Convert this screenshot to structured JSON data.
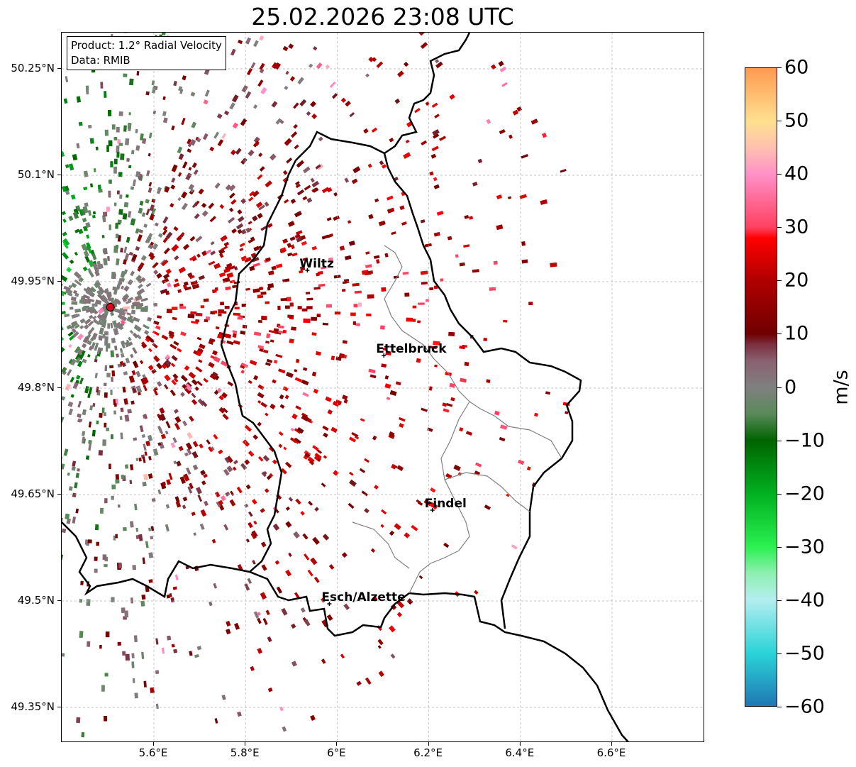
{
  "title": "25.02.2026 23:08 UTC",
  "info": {
    "product_line": "Product: 1.2° Radial Velocity",
    "data_line": "Data: RMIB"
  },
  "map": {
    "lon_range": [
      5.4,
      6.8
    ],
    "lat_range": [
      49.3,
      50.3
    ],
    "lat_ticks": [
      "50.25°N",
      "50.1°N",
      "49.95°N",
      "49.8°N",
      "49.65°N",
      "49.5°N",
      "49.35°N"
    ],
    "lat_tick_values": [
      50.25,
      50.1,
      49.95,
      49.8,
      49.65,
      49.5,
      49.35
    ],
    "lon_ticks": [
      "5.6°E",
      "5.8°E",
      "6°E",
      "6.2°E",
      "6.4°E",
      "6.6°E"
    ],
    "lon_tick_values": [
      5.6,
      5.8,
      6.0,
      6.2,
      6.4,
      6.6
    ],
    "gridlines": true,
    "radar_site": {
      "lon": 5.505,
      "lat": 49.914,
      "color": "#e0001a"
    },
    "cities": [
      {
        "name": "Wiltz",
        "lon": 5.935,
        "lat": 49.966
      },
      {
        "name": "Ettelbruck",
        "lon": 6.102,
        "lat": 49.846
      },
      {
        "name": "Findel",
        "lon": 6.208,
        "lat": 49.628
      },
      {
        "name": "Esch/Alzette",
        "lon": 5.983,
        "lat": 49.496
      }
    ]
  },
  "colorbar": {
    "min": -60,
    "max": 60,
    "ticks": [
      "60",
      "50",
      "40",
      "30",
      "20",
      "10",
      "0",
      "−10",
      "−20",
      "−30",
      "−40",
      "−50",
      "−60"
    ],
    "tick_values": [
      60,
      50,
      40,
      30,
      20,
      10,
      0,
      -10,
      -20,
      -30,
      -40,
      -50,
      -60
    ],
    "unit": "m/s",
    "stops": [
      {
        "v": -60,
        "c": "#1f77b4"
      },
      {
        "v": -50,
        "c": "#2ad4d8"
      },
      {
        "v": -40,
        "c": "#b4eef0"
      },
      {
        "v": -35,
        "c": "#8ef0b0"
      },
      {
        "v": -30,
        "c": "#2af050"
      },
      {
        "v": -20,
        "c": "#00b020"
      },
      {
        "v": -10,
        "c": "#006400"
      },
      {
        "v": -5,
        "c": "#5a8a5a"
      },
      {
        "v": 0,
        "c": "#808080"
      },
      {
        "v": 5,
        "c": "#8a6070"
      },
      {
        "v": 8,
        "c": "#7a3040"
      },
      {
        "v": 10,
        "c": "#700000"
      },
      {
        "v": 20,
        "c": "#b00000"
      },
      {
        "v": 28,
        "c": "#ff0000"
      },
      {
        "v": 30,
        "c": "#ff4060"
      },
      {
        "v": 40,
        "c": "#ff90c8"
      },
      {
        "v": 45,
        "c": "#ffc0b0"
      },
      {
        "v": 50,
        "c": "#ffe090"
      },
      {
        "v": 60,
        "c": "#ff9a50"
      }
    ]
  }
}
